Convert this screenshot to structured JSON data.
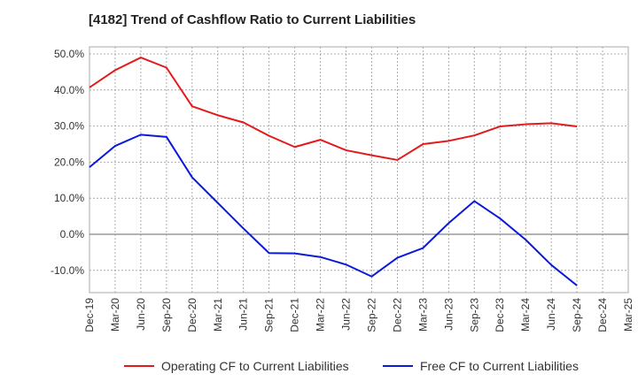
{
  "chart_data": {
    "type": "line",
    "title": "[4182]  Trend of Cashflow Ratio to Current Liabilities",
    "xlabel": "",
    "ylabel": "",
    "categories": [
      "Dec-19",
      "Mar-20",
      "Jun-20",
      "Sep-20",
      "Dec-20",
      "Mar-21",
      "Jun-21",
      "Sep-21",
      "Dec-21",
      "Mar-22",
      "Jun-22",
      "Sep-22",
      "Dec-22",
      "Mar-23",
      "Jun-23",
      "Sep-23",
      "Dec-23",
      "Mar-24",
      "Jun-24",
      "Sep-24",
      "Dec-24",
      "Mar-25"
    ],
    "yticks": [
      "50.0%",
      "40.0%",
      "30.0%",
      "20.0%",
      "10.0%",
      "0.0%",
      "-10.0%"
    ],
    "ylim": [
      -16,
      52
    ],
    "grid": true,
    "legend_position": "bottom",
    "series": [
      {
        "name": "Operating CF to Current Liabilities",
        "color": "#e31a1c",
        "values": [
          40.7,
          45.5,
          49.0,
          46.2,
          35.5,
          33.0,
          31.0,
          27.3,
          24.2,
          26.2,
          23.3,
          21.9,
          20.6,
          25.0,
          25.9,
          27.4,
          29.9,
          30.5,
          30.8,
          29.9,
          null,
          null
        ]
      },
      {
        "name": "Free CF to Current Liabilities",
        "color": "#0b1ad8",
        "values": [
          18.6,
          24.5,
          27.6,
          27.0,
          15.8,
          8.7,
          1.6,
          -5.2,
          -5.3,
          -6.3,
          -8.4,
          -11.7,
          -6.5,
          -3.8,
          3.1,
          9.2,
          4.4,
          -1.5,
          -8.5,
          -14.2,
          null,
          null
        ]
      }
    ]
  }
}
